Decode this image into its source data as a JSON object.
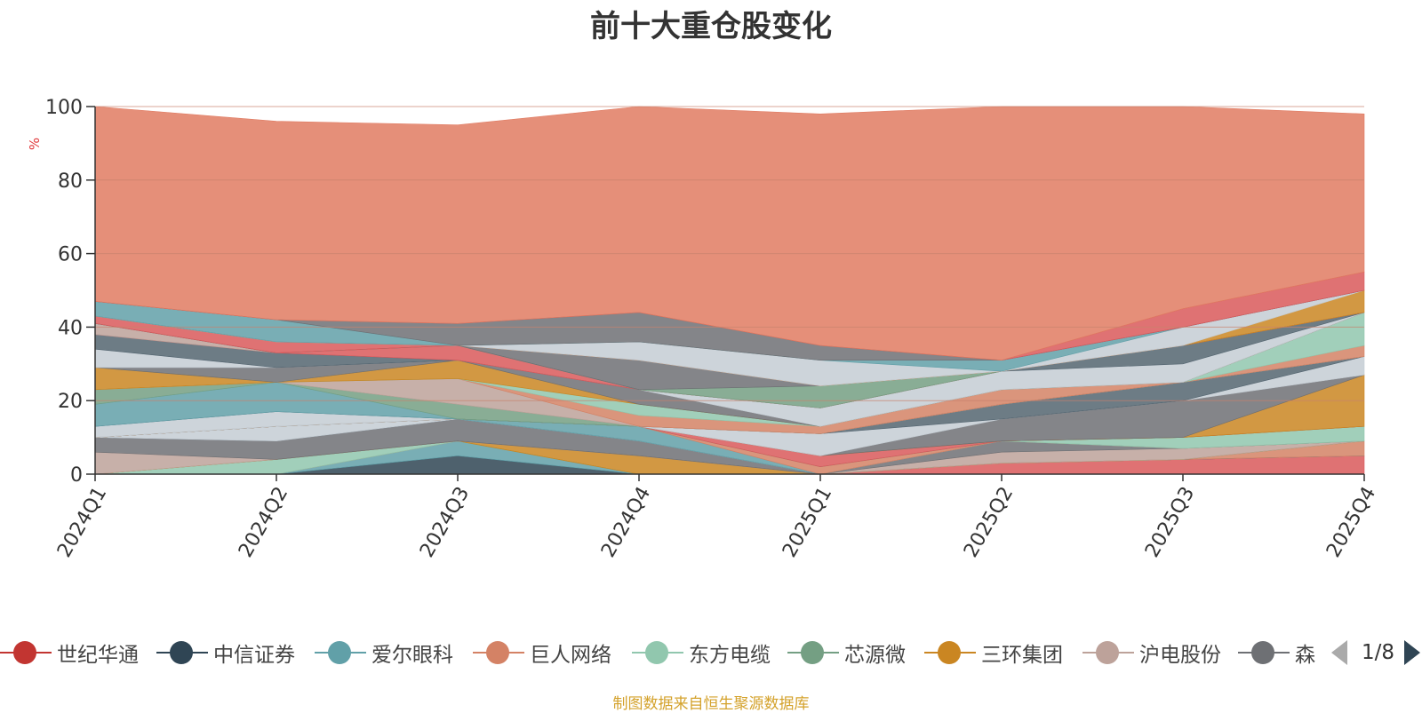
{
  "chart_data": {
    "type": "area",
    "title": "前十大重仓股变化",
    "ylabel": "%",
    "xlabel": "",
    "ylim": [
      0,
      100
    ],
    "yticks": [
      "0",
      "20",
      "40",
      "60",
      "80",
      "100"
    ],
    "x": [
      "2024Q1",
      "2024Q2",
      "2024Q3",
      "2024Q4",
      "2025Q1",
      "2025Q2",
      "2025Q3",
      "2025Q4"
    ],
    "stacked": true,
    "grid": true,
    "legend_position": "bottom",
    "series": [
      {
        "name": "世纪华通",
        "color": "#d9595b",
        "values": [
          0,
          0,
          0,
          0,
          0,
          3,
          4,
          5
        ]
      },
      {
        "name": "中信证券",
        "color": "#2f4554",
        "values": [
          0,
          0,
          5,
          0,
          0,
          0,
          0,
          0
        ]
      },
      {
        "name": "爱尔眼科",
        "color": "#61a0a8",
        "values": [
          0,
          0,
          4,
          0,
          0,
          0,
          0,
          0
        ]
      },
      {
        "name": "巨人网络",
        "color": "#d48265",
        "values": [
          0,
          0,
          0,
          0,
          0,
          0,
          0,
          4
        ]
      },
      {
        "name": "东方电缆",
        "color": "#91c7ae",
        "values": [
          0,
          4,
          0,
          0,
          0,
          0,
          0,
          0
        ]
      },
      {
        "name": "芯源微",
        "color": "#749f83",
        "values": [
          0,
          0,
          0,
          0,
          0,
          0,
          0,
          0
        ]
      },
      {
        "name": "三环集团",
        "color": "#ca8622",
        "values": [
          0,
          0,
          0,
          5,
          0,
          0,
          0,
          0
        ]
      },
      {
        "name": "沪电股份",
        "color": "#bda29a",
        "values": [
          6,
          0,
          0,
          0,
          0,
          3,
          3,
          0
        ]
      },
      {
        "name": "森",
        "color": "#6e7074",
        "values": [
          4,
          5,
          6,
          4,
          0,
          3,
          0,
          0
        ]
      },
      {
        "name": "",
        "color": "#546570",
        "values": [
          0,
          0,
          0,
          0,
          0,
          0,
          0,
          0
        ]
      },
      {
        "name": "",
        "color": "#c4ccd3",
        "values": [
          0,
          4,
          0,
          0,
          0,
          0,
          0,
          0
        ]
      },
      {
        "name": "",
        "color": "#61a0a8",
        "values": [
          0,
          0,
          0,
          4,
          0,
          0,
          0,
          0
        ]
      },
      {
        "name": "",
        "color": "#d48265",
        "values": [
          0,
          0,
          0,
          0,
          2,
          0,
          0,
          0
        ]
      },
      {
        "name": "",
        "color": "#91c7ae",
        "values": [
          0,
          0,
          0,
          0,
          0,
          0,
          3,
          4
        ]
      },
      {
        "name": "",
        "color": "#749f83",
        "values": [
          0,
          0,
          0,
          0,
          0,
          0,
          0,
          0
        ]
      },
      {
        "name": "",
        "color": "#d9595b",
        "values": [
          0,
          0,
          0,
          0,
          3,
          0,
          0,
          0
        ]
      },
      {
        "name": "",
        "color": "#ca8622",
        "values": [
          0,
          0,
          0,
          0,
          0,
          0,
          0,
          14
        ]
      },
      {
        "name": "",
        "color": "#6e7074",
        "values": [
          0,
          0,
          0,
          0,
          0,
          6,
          10,
          0
        ]
      },
      {
        "name": "",
        "color": "#c4ccd3",
        "values": [
          3,
          4,
          0,
          0,
          6,
          0,
          0,
          5
        ]
      },
      {
        "name": "",
        "color": "#546570",
        "values": [
          0,
          0,
          0,
          0,
          0,
          4,
          5,
          0
        ]
      },
      {
        "name": "",
        "color": "#61a0a8",
        "values": [
          6,
          8,
          0,
          0,
          0,
          0,
          0,
          0
        ]
      },
      {
        "name": "",
        "color": "#749f83",
        "values": [
          4,
          0,
          4,
          0,
          0,
          0,
          0,
          0
        ]
      },
      {
        "name": "",
        "color": "#bda29a",
        "values": [
          0,
          0,
          7,
          0,
          0,
          0,
          0,
          0
        ]
      },
      {
        "name": "",
        "color": "#d48265",
        "values": [
          0,
          0,
          0,
          3,
          2,
          4,
          0,
          3
        ]
      },
      {
        "name": "",
        "color": "#91c7ae",
        "values": [
          0,
          0,
          0,
          3,
          0,
          0,
          0,
          9
        ]
      },
      {
        "name": "",
        "color": "#ca8622",
        "values": [
          6,
          0,
          5,
          0,
          0,
          0,
          0,
          0
        ]
      },
      {
        "name": "",
        "color": "#6e7074",
        "values": [
          0,
          4,
          0,
          4,
          0,
          0,
          0,
          0
        ]
      },
      {
        "name": "",
        "color": "#c4ccd3",
        "values": [
          5,
          0,
          0,
          0,
          5,
          5,
          5,
          0
        ]
      },
      {
        "name": "",
        "color": "#546570",
        "values": [
          4,
          4,
          0,
          0,
          0,
          0,
          5,
          0
        ]
      },
      {
        "name": "",
        "color": "#d9595b",
        "values": [
          0,
          0,
          4,
          0,
          0,
          0,
          0,
          0
        ]
      },
      {
        "name": "",
        "color": "#bda29a",
        "values": [
          3,
          0,
          0,
          0,
          0,
          0,
          0,
          0
        ]
      },
      {
        "name": "",
        "color": "#749f83",
        "values": [
          0,
          0,
          0,
          0,
          6,
          0,
          0,
          0
        ]
      },
      {
        "name": "",
        "color": "#6e7074",
        "values": [
          0,
          0,
          0,
          8,
          0,
          0,
          0,
          0
        ]
      },
      {
        "name": "",
        "color": "#d9595b",
        "values": [
          2,
          3,
          0,
          0,
          0,
          0,
          0,
          0
        ]
      },
      {
        "name": "",
        "color": "#ca8622",
        "values": [
          0,
          0,
          0,
          0,
          0,
          0,
          0,
          6
        ]
      },
      {
        "name": "",
        "color": "#c4ccd3",
        "values": [
          0,
          0,
          0,
          5,
          7,
          0,
          5,
          0
        ]
      },
      {
        "name": "",
        "color": "#61a0a8",
        "values": [
          4,
          6,
          0,
          0,
          0,
          3,
          0,
          0
        ]
      },
      {
        "name": "",
        "color": "#6e7074",
        "values": [
          0,
          0,
          6,
          8,
          4,
          0,
          0,
          0
        ]
      },
      {
        "name": "",
        "color": "#d9595b",
        "values": [
          0,
          0,
          0,
          0,
          0,
          0,
          5,
          5
        ]
      },
      {
        "name": "",
        "color": "#e07b62",
        "values": [
          53,
          54,
          54,
          57,
          63,
          69,
          58,
          43
        ]
      }
    ]
  },
  "legend": {
    "items": [
      {
        "label": "世纪华通",
        "color": "#c23531"
      },
      {
        "label": "中信证券",
        "color": "#2f4554"
      },
      {
        "label": "爱尔眼科",
        "color": "#61a0a8"
      },
      {
        "label": "巨人网络",
        "color": "#d48265"
      },
      {
        "label": "东方电缆",
        "color": "#91c7ae"
      },
      {
        "label": "芯源微",
        "color": "#749f83"
      },
      {
        "label": "三环集团",
        "color": "#ca8622"
      },
      {
        "label": "沪电股份",
        "color": "#bda29a"
      },
      {
        "label": "森",
        "color": "#6e7074"
      }
    ],
    "page_text": "1/8",
    "prev_icon": "triangle-left-icon",
    "next_icon": "triangle-right-icon"
  },
  "source_note": "制图数据来自恒生聚源数据库",
  "colors": {
    "axis": "#333333",
    "grid": "#c7826e",
    "ylabel": "#e0393b",
    "note": "#d4a22c"
  }
}
